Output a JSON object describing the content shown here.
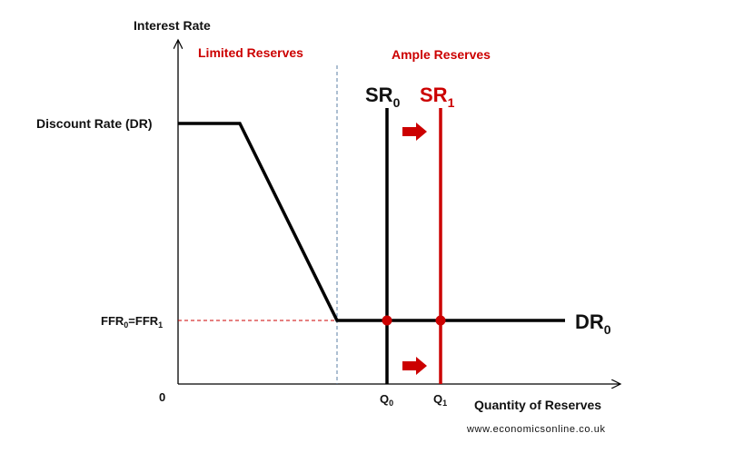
{
  "chart_data": {
    "type": "line",
    "title": "",
    "ylabel": "Interest Rate",
    "xlabel": "Quantity of Reserves",
    "origin_label": "0",
    "regions": [
      {
        "label": "Limited Reserves",
        "color": "#cc0000"
      },
      {
        "label": "Ample Reserves",
        "color": "#cc0000"
      }
    ],
    "y_levels": {
      "discount_rate": {
        "label": "Discount Rate (DR)"
      },
      "ffr": {
        "label": "FFR",
        "sub0": "0",
        "eq": "=FFR",
        "sub1": "1"
      }
    },
    "demand_curve": {
      "name": "DR",
      "sub": "0",
      "color": "#000000"
    },
    "supply_curves": [
      {
        "name": "SR",
        "sub": "0",
        "color": "#000000",
        "x_label": "Q",
        "x_sub": "0"
      },
      {
        "name": "SR",
        "sub": "1",
        "color": "#cc0000",
        "x_label": "Q",
        "x_sub": "1"
      }
    ],
    "shift_arrow_color": "#cc0000",
    "intersection_color": "#cc0000",
    "grid": false,
    "legend": "none"
  },
  "source": "www.economicsonline.co.uk"
}
